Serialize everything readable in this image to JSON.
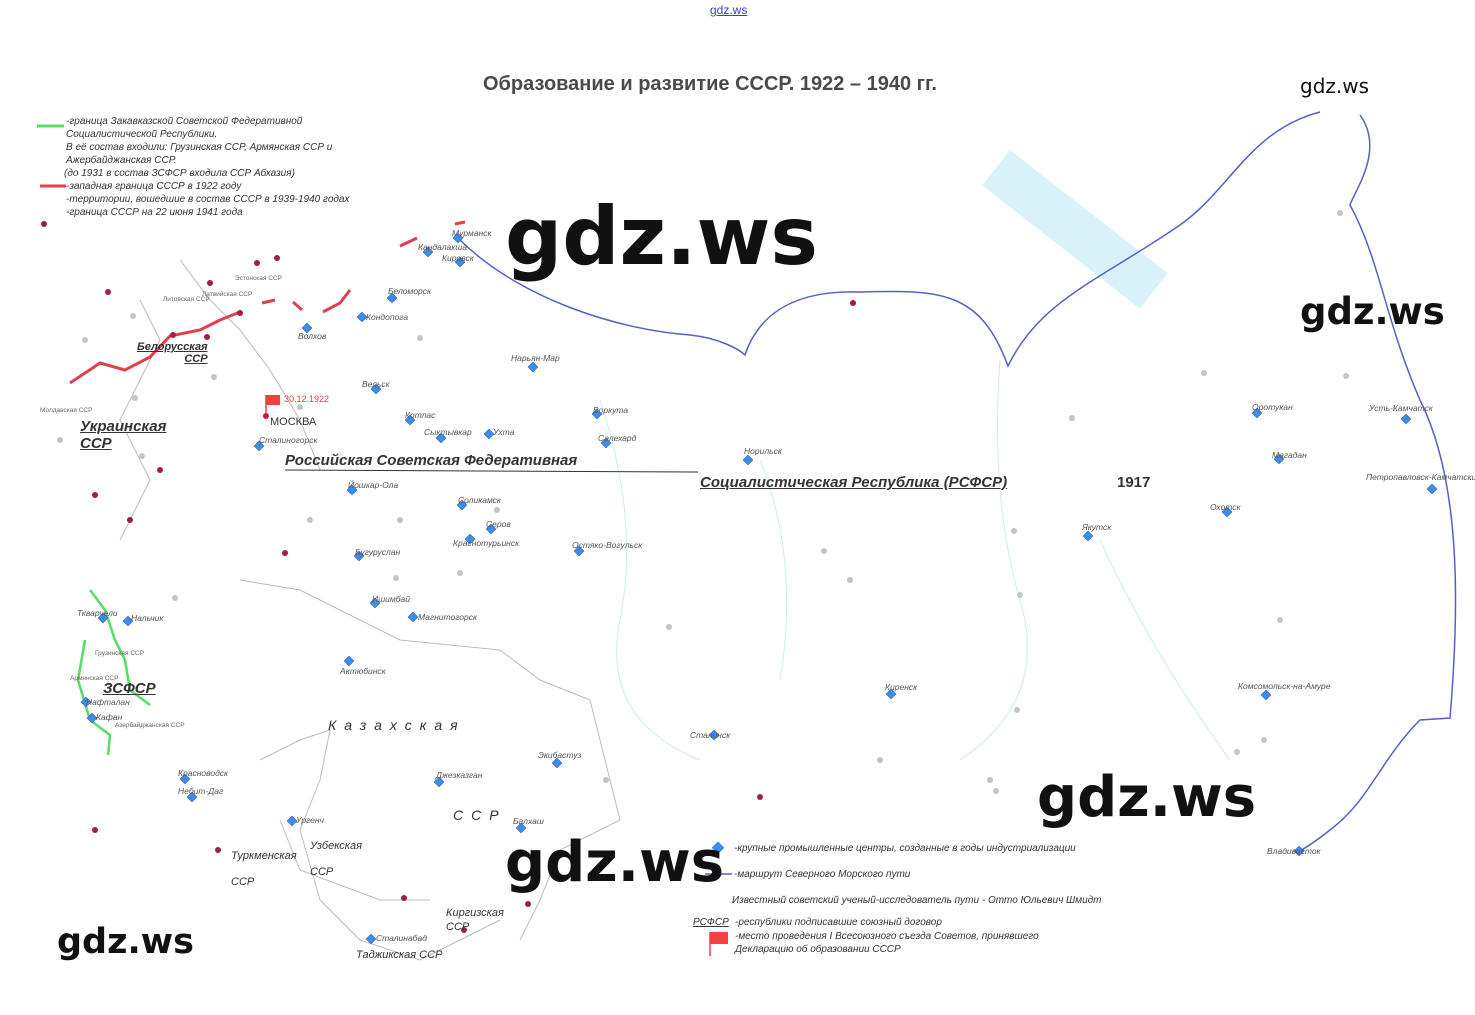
{
  "header_link": "gdz.ws",
  "title": "Образование и развитие СССР. 1922 – 1940 гг.",
  "watermarks": [
    "gdz.ws",
    "gdz.ws",
    "gdz.ws",
    "gdz.ws",
    "gdz.ws",
    "gdz.ws"
  ],
  "legend_top": {
    "zsfsr_border": [
      "-граница Закавказской Советской Федеративной",
      "Социалистической Республики.",
      "В её состав входили: Грузинская ССР, Армянская ССР и",
      "Ажербайджанская ССР.",
      "(до 1931 в состав ЗСФСР входила ССР Абхазия)"
    ],
    "west_border_1922": "-западная граница СССР в 1922 году",
    "territories_1939_1940": "-территории, вошедшие в состав СССР в 1939-1940 годах",
    "border_1941": "-граница СССР на 22 июня 1941 года",
    "colors": {
      "zsfsr": "#55dd66",
      "border_1922": "#e0404a",
      "territories": "#a02040"
    }
  },
  "legend_bottom": {
    "industrial_centers": "-крупные промышленные центры, созданные в годы индустриализации",
    "sea_route": "-маршрут Северного Морского пути",
    "explorer": "Известный советский ученый-исследователь пути - Отто Юльевич Шмидт",
    "rsfsr_sample": "РСФСР",
    "treaty_republics": "-республики подписавшие союзный договор",
    "congress_place": [
      "-место проведения I Всесоюзного съезда Советов, принявшего",
      "Декларацию об образовании СССР"
    ],
    "colors": {
      "diamond": "#3a8ee8",
      "route": "#5560c8",
      "flag": "#f04040"
    }
  },
  "moscow": {
    "name": "МОСКВА",
    "date": "30.12.1922"
  },
  "republics": {
    "rsfsr_1": "Российская   Советская   Федеративная",
    "rsfsr_2": "Социалистическая    Республика   (РСФСР)",
    "rsfsr_year": "1917",
    "ukraine": [
      "Украинская",
      "ССР"
    ],
    "belarus": [
      "Белорусская",
      "ССР"
    ],
    "zsfsr": "ЗСФСР",
    "kazakh_1": "Казахская",
    "kazakh_2": "ССР",
    "uzbek": [
      "Узбекская",
      "ССР"
    ],
    "turkmen": [
      "Туркменская",
      "ССР"
    ],
    "kirgiz": [
      "Киргизская",
      "ССР"
    ],
    "tajik": "Таджикская ССР",
    "small": [
      "Литовская ССР",
      "Латвийская ССР",
      "Эстонская ССР",
      "Молдавская ССР",
      "Грузинская ССР",
      "Армянская ССР",
      "Азербайджанская ССР"
    ]
  },
  "cities": [
    "Мурманск",
    "Кандалакша",
    "Кировск",
    "Беломорск",
    "Кондопога",
    "Волхов",
    "Вельск",
    "Котлас",
    "Сыктывкар",
    "Ухта",
    "Воркута",
    "Салехард",
    "Нарьян-Мар",
    "Норильск",
    "Сталиногорск",
    "Йошкар-Ола",
    "Соликамск",
    "Серов",
    "Краснотурьинск",
    "Бугуруслан",
    "Остяко-Вогульск",
    "Ишимбай",
    "Магнитогорск",
    "Актюбинск",
    "Экибастуз",
    "Джезказган",
    "Балхаш",
    "Сталинск",
    "Киренск",
    "Якутск",
    "Охотск",
    "Оротукан",
    "Магадан",
    "Усть-Камчатск",
    "Петропавловск-Камчатский",
    "Комсомольск-на-Амуре",
    "Владивосток",
    "Ткварчели",
    "Нальчик",
    "Нафталан",
    "Кафан",
    "Красноводск",
    "Небит-Даг",
    "Ургенч",
    "Сталинабад"
  ]
}
